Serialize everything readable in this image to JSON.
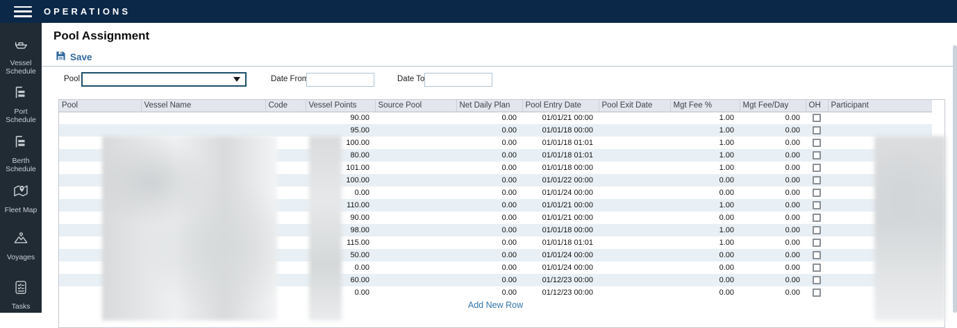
{
  "topbar": {
    "title": "OPERATIONS"
  },
  "sidebar": {
    "items": [
      {
        "label": "Vessel Schedule",
        "icon": "ship-icon"
      },
      {
        "label": "Port Schedule",
        "icon": "port-schedule-icon"
      },
      {
        "label": "Berth Schedule",
        "icon": "berth-schedule-icon"
      },
      {
        "label": "Fleet Map",
        "icon": "fleet-map-icon"
      },
      {
        "label": "Voyages",
        "icon": "voyages-icon"
      },
      {
        "label": "Tasks",
        "icon": "tasks-icon"
      }
    ]
  },
  "page": {
    "title": "Pool Assignment"
  },
  "toolbar": {
    "save_label": "Save"
  },
  "filters": {
    "pool_label": "Pool",
    "pool_value": "",
    "date_from_label": "Date From",
    "date_from_value": "",
    "date_to_label": "Date To",
    "date_to_value": ""
  },
  "table": {
    "columns": [
      "Pool",
      "Vessel Name",
      "Code",
      "Vessel Points",
      "Source Pool",
      "Net Daily Plan",
      "Pool Entry Date",
      "Pool Exit Date",
      "Mgt Fee %",
      "Mgt Fee/Day",
      "OH",
      "Participant"
    ],
    "redacted_columns": [
      "Pool",
      "Vessel Name",
      "Code",
      "Participant"
    ],
    "add_row_label": "Add New Row",
    "rows": [
      {
        "vessel_points": "90.00",
        "net_daily_plan": "0.00",
        "pool_entry_date": "01/01/21 00:00",
        "pool_exit_date": "",
        "mgt_fee_pct": "1.00",
        "mgt_fee_day": "0.00",
        "oh_checked": false
      },
      {
        "vessel_points": "95.00",
        "net_daily_plan": "0.00",
        "pool_entry_date": "01/01/18 00:00",
        "pool_exit_date": "",
        "mgt_fee_pct": "1.00",
        "mgt_fee_day": "0.00",
        "oh_checked": false
      },
      {
        "vessel_points": "100.00",
        "net_daily_plan": "0.00",
        "pool_entry_date": "01/01/18 01:01",
        "pool_exit_date": "",
        "mgt_fee_pct": "1.00",
        "mgt_fee_day": "0.00",
        "oh_checked": false
      },
      {
        "vessel_points": "80.00",
        "net_daily_plan": "0.00",
        "pool_entry_date": "01/01/18 01:01",
        "pool_exit_date": "",
        "mgt_fee_pct": "1.00",
        "mgt_fee_day": "0.00",
        "oh_checked": false
      },
      {
        "vessel_points": "101.00",
        "net_daily_plan": "0.00",
        "pool_entry_date": "01/01/18 00:00",
        "pool_exit_date": "",
        "mgt_fee_pct": "1.00",
        "mgt_fee_day": "0.00",
        "oh_checked": false
      },
      {
        "vessel_points": "100.00",
        "net_daily_plan": "0.00",
        "pool_entry_date": "01/01/22 00:00",
        "pool_exit_date": "",
        "mgt_fee_pct": "0.00",
        "mgt_fee_day": "0.00",
        "oh_checked": false
      },
      {
        "vessel_points": "0.00",
        "net_daily_plan": "0.00",
        "pool_entry_date": "01/01/24 00:00",
        "pool_exit_date": "",
        "mgt_fee_pct": "0.00",
        "mgt_fee_day": "0.00",
        "oh_checked": false
      },
      {
        "vessel_points": "110.00",
        "net_daily_plan": "0.00",
        "pool_entry_date": "01/01/21 00:00",
        "pool_exit_date": "",
        "mgt_fee_pct": "1.00",
        "mgt_fee_day": "0.00",
        "oh_checked": false
      },
      {
        "vessel_points": "90.00",
        "net_daily_plan": "0.00",
        "pool_entry_date": "01/01/21 00:00",
        "pool_exit_date": "",
        "mgt_fee_pct": "0.00",
        "mgt_fee_day": "0.00",
        "oh_checked": false
      },
      {
        "vessel_points": "98.00",
        "net_daily_plan": "0.00",
        "pool_entry_date": "01/01/18 00:00",
        "pool_exit_date": "",
        "mgt_fee_pct": "1.00",
        "mgt_fee_day": "0.00",
        "oh_checked": false
      },
      {
        "vessel_points": "115.00",
        "net_daily_plan": "0.00",
        "pool_entry_date": "01/01/18 01:01",
        "pool_exit_date": "",
        "mgt_fee_pct": "1.00",
        "mgt_fee_day": "0.00",
        "oh_checked": false
      },
      {
        "vessel_points": "50.00",
        "net_daily_plan": "0.00",
        "pool_entry_date": "01/01/24 00:00",
        "pool_exit_date": "",
        "mgt_fee_pct": "0.00",
        "mgt_fee_day": "0.00",
        "oh_checked": false
      },
      {
        "vessel_points": "0.00",
        "net_daily_plan": "0.00",
        "pool_entry_date": "01/01/24 00:00",
        "pool_exit_date": "",
        "mgt_fee_pct": "0.00",
        "mgt_fee_day": "0.00",
        "oh_checked": false
      },
      {
        "vessel_points": "60.00",
        "net_daily_plan": "0.00",
        "pool_entry_date": "01/12/23 00:00",
        "pool_exit_date": "",
        "mgt_fee_pct": "0.00",
        "mgt_fee_day": "0.00",
        "oh_checked": false
      },
      {
        "vessel_points": "0.00",
        "net_daily_plan": "0.00",
        "pool_entry_date": "01/12/23 00:00",
        "pool_exit_date": "",
        "mgt_fee_pct": "0.00",
        "mgt_fee_day": "0.00",
        "oh_checked": false
      }
    ]
  },
  "colors": {
    "topbar_bg": "#0c2849",
    "sidebar_bg": "#202b34",
    "accent_link": "#31699e",
    "select_border": "#1c4f68",
    "stripe_row": "#e9f0f5",
    "header_bg": "#e4e6ed"
  }
}
